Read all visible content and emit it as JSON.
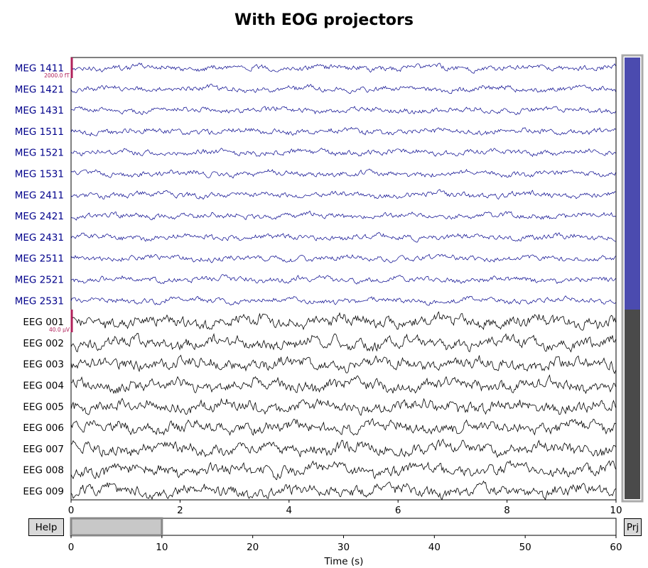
{
  "title": "With EOG projectors",
  "colors": {
    "meg": "#00008b",
    "eeg": "#000000",
    "scale_bar": "#b0205a",
    "vscroll_meg": "#4b4baf",
    "vscroll_eeg": "#4a4a4a",
    "button_bg": "#d9d9d9"
  },
  "buttons": {
    "help": "Help",
    "projectors": "Prj"
  },
  "scale_bars": {
    "meg": "2000.0 fT",
    "eeg": "40.0 µV"
  },
  "chart_data": [
    {
      "type": "line",
      "name": "raw-traces",
      "channels": [
        {
          "name": "MEG 1411",
          "type": "meg"
        },
        {
          "name": "MEG 1421",
          "type": "meg"
        },
        {
          "name": "MEG 1431",
          "type": "meg"
        },
        {
          "name": "MEG 1511",
          "type": "meg"
        },
        {
          "name": "MEG 1521",
          "type": "meg"
        },
        {
          "name": "MEG 1531",
          "type": "meg"
        },
        {
          "name": "MEG 2411",
          "type": "meg"
        },
        {
          "name": "MEG 2421",
          "type": "meg"
        },
        {
          "name": "MEG 2431",
          "type": "meg"
        },
        {
          "name": "MEG 2511",
          "type": "meg"
        },
        {
          "name": "MEG 2521",
          "type": "meg"
        },
        {
          "name": "MEG 2531",
          "type": "meg"
        },
        {
          "name": "EEG 001",
          "type": "eeg"
        },
        {
          "name": "EEG 002",
          "type": "eeg"
        },
        {
          "name": "EEG 003",
          "type": "eeg"
        },
        {
          "name": "EEG 004",
          "type": "eeg"
        },
        {
          "name": "EEG 005",
          "type": "eeg"
        },
        {
          "name": "EEG 006",
          "type": "eeg"
        },
        {
          "name": "EEG 007",
          "type": "eeg"
        },
        {
          "name": "EEG 008",
          "type": "eeg"
        },
        {
          "name": "EEG 009",
          "type": "eeg"
        }
      ],
      "xlim": [
        0,
        10
      ],
      "xticks": [
        0,
        2,
        4,
        6,
        8,
        10
      ],
      "xlabel": "",
      "ylabel": ""
    },
    {
      "type": "bar",
      "name": "time-scrollbar",
      "xlim": [
        0,
        60
      ],
      "xticks": [
        0,
        10,
        20,
        30,
        40,
        50,
        60
      ],
      "xlabel": "Time (s)",
      "visible_window": [
        0,
        10
      ]
    }
  ]
}
